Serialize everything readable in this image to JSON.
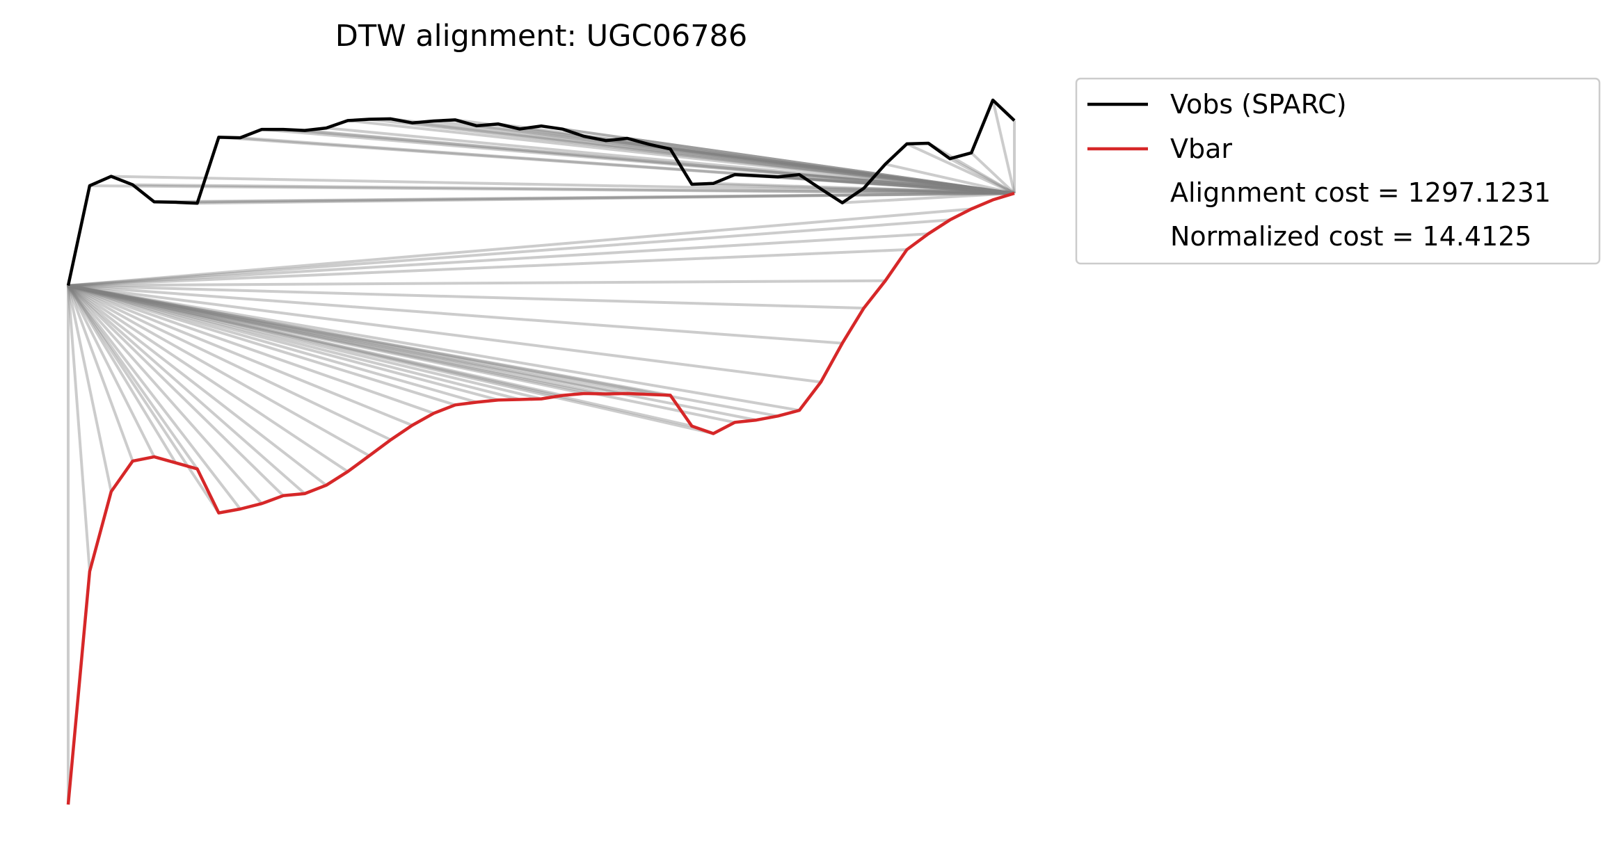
{
  "chart_data": {
    "type": "line",
    "title": "DTW alignment: UGC06786",
    "axes_visible": false,
    "grid": false,
    "legend_position": "outside-top-right",
    "xlim": [
      0,
      44
    ],
    "ylim": [
      0,
      1
    ],
    "series": [
      {
        "name": "Vobs (SPARC)",
        "color": "#000000",
        "x": [
          0,
          1,
          2,
          3,
          4,
          5,
          6,
          7,
          8,
          9,
          10,
          11,
          12,
          13,
          14,
          15,
          16,
          17,
          18,
          19,
          20,
          21,
          22,
          23,
          24,
          25,
          26,
          27,
          28,
          29,
          30,
          31,
          32,
          33,
          34,
          35,
          36,
          37,
          38,
          39,
          40,
          41,
          42,
          43,
          44
        ],
        "values": [
          0.7367,
          0.8785,
          0.8918,
          0.8799,
          0.8556,
          0.855,
          0.8536,
          0.9473,
          0.9466,
          0.9584,
          0.9584,
          0.957,
          0.9604,
          0.971,
          0.9729,
          0.9734,
          0.9677,
          0.9704,
          0.972,
          0.9636,
          0.9661,
          0.959,
          0.9633,
          0.9588,
          0.9486,
          0.9425,
          0.9457,
          0.9374,
          0.9306,
          0.8806,
          0.8817,
          0.8943,
          0.8927,
          0.891,
          0.8943,
          0.874,
          0.8543,
          0.8749,
          0.9091,
          0.9379,
          0.9388,
          0.9169,
          0.9252,
          1.0,
          0.971
        ]
      },
      {
        "name": "Vbar",
        "color": "#d62728",
        "x": [
          0,
          1,
          2,
          3,
          4,
          5,
          6,
          7,
          8,
          9,
          10,
          11,
          12,
          13,
          14,
          15,
          16,
          17,
          18,
          19,
          20,
          21,
          22,
          23,
          24,
          25,
          26,
          27,
          28,
          29,
          30,
          31,
          32,
          33,
          34,
          35,
          36,
          37,
          38,
          39,
          40,
          41,
          42,
          43,
          44
        ],
        "values": [
          0.0,
          0.3309,
          0.4442,
          0.4876,
          0.4937,
          0.4851,
          0.4765,
          0.414,
          0.4195,
          0.4272,
          0.4385,
          0.4414,
          0.4533,
          0.4727,
          0.4952,
          0.5178,
          0.5384,
          0.5555,
          0.5673,
          0.5712,
          0.5743,
          0.575,
          0.5759,
          0.5808,
          0.5835,
          0.5829,
          0.5835,
          0.5822,
          0.581,
          0.5373,
          0.5267,
          0.5425,
          0.5458,
          0.5515,
          0.5596,
          0.5997,
          0.6549,
          0.7047,
          0.7435,
          0.7878,
          0.8103,
          0.8299,
          0.8455,
          0.8584,
          0.8677
        ]
      }
    ],
    "alignment_path": [
      [
        0,
        0
      ],
      [
        0,
        1
      ],
      [
        0,
        2
      ],
      [
        0,
        3
      ],
      [
        0,
        4
      ],
      [
        0,
        5
      ],
      [
        0,
        6
      ],
      [
        0,
        7
      ],
      [
        0,
        8
      ],
      [
        0,
        9
      ],
      [
        0,
        10
      ],
      [
        0,
        11
      ],
      [
        0,
        12
      ],
      [
        0,
        13
      ],
      [
        0,
        14
      ],
      [
        0,
        15
      ],
      [
        0,
        16
      ],
      [
        0,
        17
      ],
      [
        0,
        18
      ],
      [
        0,
        19
      ],
      [
        0,
        20
      ],
      [
        0,
        21
      ],
      [
        0,
        22
      ],
      [
        0,
        23
      ],
      [
        0,
        24
      ],
      [
        0,
        25
      ],
      [
        0,
        26
      ],
      [
        0,
        27
      ],
      [
        0,
        28
      ],
      [
        0,
        29
      ],
      [
        0,
        30
      ],
      [
        0,
        31
      ],
      [
        0,
        32
      ],
      [
        0,
        33
      ],
      [
        0,
        34
      ],
      [
        0,
        35
      ],
      [
        0,
        36
      ],
      [
        0,
        37
      ],
      [
        0,
        38
      ],
      [
        0,
        39
      ],
      [
        0,
        40
      ],
      [
        0,
        41
      ],
      [
        0,
        42
      ],
      [
        1,
        44
      ],
      [
        2,
        44
      ],
      [
        3,
        44
      ],
      [
        4,
        44
      ],
      [
        5,
        44
      ],
      [
        6,
        44
      ],
      [
        7,
        44
      ],
      [
        8,
        44
      ],
      [
        9,
        44
      ],
      [
        10,
        44
      ],
      [
        11,
        44
      ],
      [
        12,
        44
      ],
      [
        13,
        44
      ],
      [
        14,
        44
      ],
      [
        15,
        44
      ],
      [
        16,
        44
      ],
      [
        17,
        44
      ],
      [
        18,
        44
      ],
      [
        19,
        44
      ],
      [
        20,
        44
      ],
      [
        21,
        44
      ],
      [
        22,
        44
      ],
      [
        23,
        44
      ],
      [
        24,
        44
      ],
      [
        25,
        44
      ],
      [
        26,
        44
      ],
      [
        27,
        44
      ],
      [
        28,
        44
      ],
      [
        29,
        44
      ],
      [
        30,
        44
      ],
      [
        31,
        44
      ],
      [
        32,
        44
      ],
      [
        33,
        44
      ],
      [
        34,
        44
      ],
      [
        35,
        44
      ],
      [
        36,
        44
      ],
      [
        37,
        44
      ],
      [
        38,
        44
      ],
      [
        39,
        44
      ],
      [
        40,
        44
      ],
      [
        41,
        44
      ],
      [
        42,
        44
      ],
      [
        43,
        44
      ],
      [
        44,
        44
      ]
    ],
    "annotations": [
      "Alignment cost = 1297.1231",
      "Normalized cost = 14.4125"
    ]
  }
}
